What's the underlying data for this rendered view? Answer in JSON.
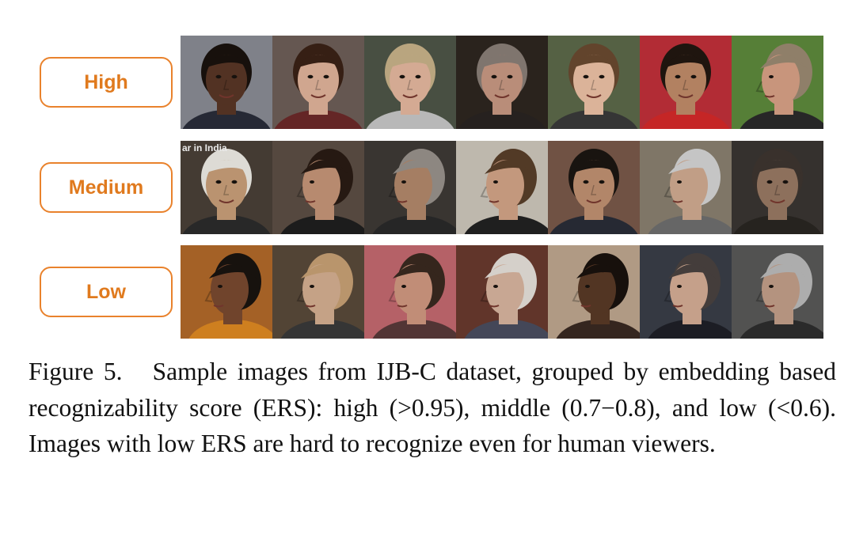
{
  "groups": [
    {
      "label": "High",
      "images": [
        {
          "bg": "#8a8d95",
          "skin": "#5a3726",
          "hair": "#1a120e",
          "shirt": "#2a2d3a",
          "pose": "front"
        },
        {
          "bg": "#6e5f58",
          "skin": "#e2b59c",
          "hair": "#3b2216",
          "shirt": "#6d2a2a",
          "pose": "front"
        },
        {
          "bg": "#4f5648",
          "skin": "#e6b9a0",
          "hair": "#c9b38a",
          "shirt": "#c8c8c8",
          "pose": "front"
        },
        {
          "bg": "#2e2620",
          "skin": "#c99a84",
          "hair": "#8a7f78",
          "shirt": "#2a2422",
          "pose": "front"
        },
        {
          "bg": "#5d6a4a",
          "skin": "#eec3a6",
          "hair": "#6b4a30",
          "shirt": "#3a3a3a",
          "pose": "front"
        },
        {
          "bg": "#c2303a",
          "skin": "#c28c6a",
          "hair": "#221711",
          "shirt": "#d62a2a",
          "pose": "front"
        },
        {
          "bg": "#5e8a3c",
          "skin": "#d9a287",
          "hair": "#9c8a72",
          "shirt": "#2b2b2b",
          "pose": "side"
        }
      ]
    },
    {
      "label": "Medium",
      "images": [
        {
          "bg": "#4a4038",
          "skin": "#caa07a",
          "hair": "#f0eee8",
          "shirt": "#2c2c2c",
          "pose": "front"
        },
        {
          "bg": "#5d4f45",
          "skin": "#c79679",
          "hair": "#2a1c14",
          "shirt": "#1f1f1f",
          "pose": "side"
        },
        {
          "bg": "#3e3a36",
          "skin": "#b4896c",
          "hair": "#9a938c",
          "shirt": "#2a2a2a",
          "pose": "side"
        },
        {
          "bg": "#cfc8bc",
          "skin": "#d4a588",
          "hair": "#5a3f2a",
          "shirt": "#222222",
          "pose": "side"
        },
        {
          "bg": "#7a5a4a",
          "skin": "#c29272",
          "hair": "#1c1612",
          "shirt": "#2a2d38",
          "pose": "front"
        },
        {
          "bg": "#8a8070",
          "skin": "#d2ac92",
          "hair": "#d6d6d6",
          "shirt": "#6f6f6f",
          "pose": "side"
        },
        {
          "bg": "#3a3632",
          "skin": "#9a7a64",
          "hair": "#3e3630",
          "shirt": "#2a2622",
          "pose": "front"
        }
      ]
    },
    {
      "label": "Low",
      "images": [
        {
          "bg": "#b26a2a",
          "skin": "#7a4a30",
          "hair": "#1a1410",
          "shirt": "#e08a22",
          "pose": "side"
        },
        {
          "bg": "#5a4a3a",
          "skin": "#d6b092",
          "hair": "#c9a276",
          "shirt": "#3a3a3a",
          "pose": "side"
        },
        {
          "bg": "#c56a70",
          "skin": "#d29a82",
          "hair": "#3a2a20",
          "shirt": "#5a3a3a",
          "pose": "side"
        },
        {
          "bg": "#6a3a2e",
          "skin": "#dab6a0",
          "hair": "#e8e2dc",
          "shirt": "#4a4e60",
          "pose": "side"
        },
        {
          "bg": "#bfa890",
          "skin": "#5a3a26",
          "hair": "#1a120e",
          "shirt": "#3a2a22",
          "pose": "side"
        },
        {
          "bg": "#3a3e48",
          "skin": "#d6ae96",
          "hair": "#4a4340",
          "shirt": "#1f2028",
          "pose": "side"
        },
        {
          "bg": "#5a5a58",
          "skin": "#c4a08a",
          "hair": "#bcbcbc",
          "shirt": "#2e2e2e",
          "pose": "side"
        }
      ]
    }
  ],
  "overlay_text": {
    "medium_first": "ar in India"
  },
  "caption": {
    "label": "Figure 5.",
    "text": "Sample images from IJB-C dataset, grouped by embedding based recognizability score (ERS): high (>0.95), middle (0.7−0.8), and low (<0.6). Images with low ERS are hard to recognize even for human viewers."
  }
}
